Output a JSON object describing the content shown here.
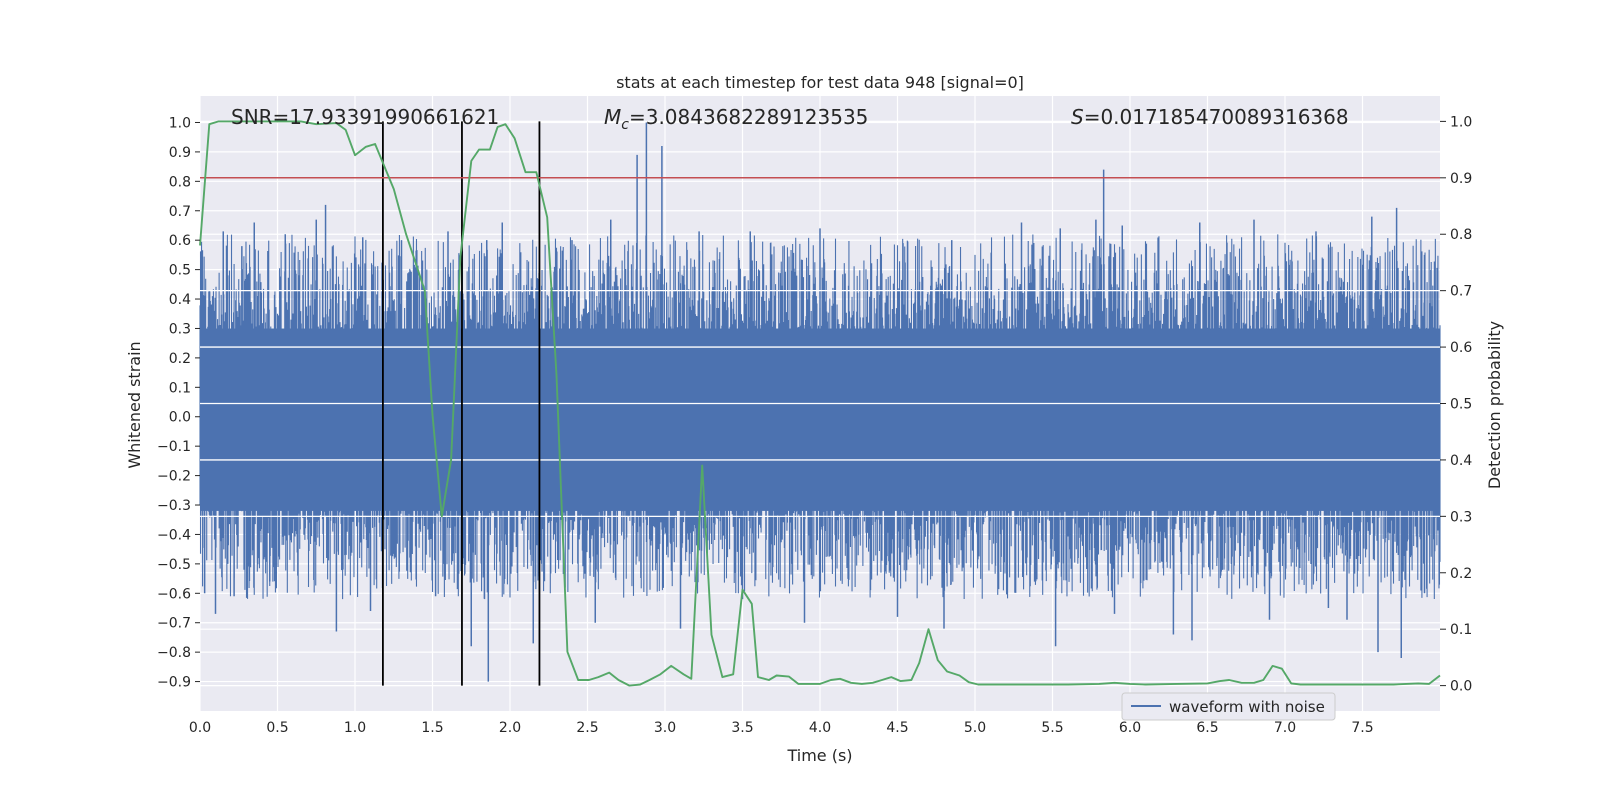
{
  "chart_data": {
    "type": "line",
    "title": "stats at each timestep for test data 948 [signal=0]",
    "xlabel": "Time (s)",
    "ylabel": "Whitened strain",
    "y2label": "Detection probability",
    "xlim": [
      0.0,
      8.0
    ],
    "ylim": [
      -1.0,
      1.09
    ],
    "y2lim": [
      -0.045,
      1.045
    ],
    "xticks": [
      "0.0",
      "0.5",
      "1.0",
      "1.5",
      "2.0",
      "2.5",
      "3.0",
      "3.5",
      "4.0",
      "4.5",
      "5.0",
      "5.5",
      "6.0",
      "6.5",
      "7.0",
      "7.5"
    ],
    "yticks": [
      "1.0",
      "0.9",
      "0.8",
      "0.7",
      "0.6",
      "0.5",
      "0.4",
      "0.3",
      "0.2",
      "0.1",
      "0.0",
      "−0.1",
      "−0.2",
      "−0.3",
      "−0.4",
      "−0.5",
      "−0.6",
      "−0.7",
      "−0.8",
      "−0.9"
    ],
    "y2ticks": [
      "1.0",
      "0.9",
      "0.8",
      "0.7",
      "0.6",
      "0.5",
      "0.4",
      "0.3",
      "0.2",
      "0.1",
      "0.0"
    ],
    "annotations": {
      "snr": "SNR=17.93391990661621",
      "mc_symbol": "M",
      "mc_sub": "c",
      "mc_value": "=3.0843682289123535",
      "s_symbol": "S",
      "s_value": "=0.01718547008931636​8"
    },
    "legend": {
      "label": "waveform with noise",
      "placement": "lower-right"
    },
    "vlines": [
      1.18,
      1.69,
      2.19
    ],
    "threshold": 0.9,
    "colors": {
      "waveform": "#4c72b0",
      "probability": "#55a868",
      "threshold": "#c44e52",
      "vline": "#000000",
      "plot_bg": "#eaeaf2",
      "grid": "#ffffff"
    },
    "series": [
      {
        "name": "waveform with noise",
        "note_envelope": "noise spikes within roughly -0.9 to 1.0",
        "spikes_up": [
          [
            0.06,
            0.43
          ],
          [
            0.15,
            0.63
          ],
          [
            0.27,
            0.58
          ],
          [
            0.35,
            0.66
          ],
          [
            0.55,
            0.62
          ],
          [
            0.75,
            0.67
          ],
          [
            0.81,
            0.72
          ],
          [
            1.05,
            0.61
          ],
          [
            1.3,
            0.6
          ],
          [
            1.6,
            0.63
          ],
          [
            1.85,
            0.6
          ],
          [
            1.95,
            0.66
          ],
          [
            2.4,
            0.6
          ],
          [
            2.65,
            0.67
          ],
          [
            2.82,
            0.89
          ],
          [
            2.88,
            1.0
          ],
          [
            2.98,
            0.92
          ],
          [
            3.22,
            0.63
          ],
          [
            3.55,
            0.63
          ],
          [
            4.0,
            0.64
          ],
          [
            4.85,
            0.6
          ],
          [
            5.3,
            0.66
          ],
          [
            5.55,
            0.64
          ],
          [
            5.78,
            0.67
          ],
          [
            5.83,
            0.84
          ],
          [
            5.95,
            0.65
          ],
          [
            6.45,
            0.66
          ],
          [
            6.8,
            0.67
          ],
          [
            7.2,
            0.63
          ],
          [
            7.56,
            0.68
          ],
          [
            7.72,
            0.71
          ],
          [
            7.9,
            0.55
          ]
        ],
        "spikes_down": [
          [
            0.03,
            -0.6
          ],
          [
            0.1,
            -0.67
          ],
          [
            0.22,
            -0.61
          ],
          [
            0.45,
            -0.56
          ],
          [
            0.88,
            -0.73
          ],
          [
            1.1,
            -0.66
          ],
          [
            1.52,
            -0.61
          ],
          [
            1.75,
            -0.78
          ],
          [
            1.86,
            -0.9
          ],
          [
            2.15,
            -0.77
          ],
          [
            2.55,
            -0.7
          ],
          [
            3.1,
            -0.72
          ],
          [
            3.5,
            -0.62
          ],
          [
            3.9,
            -0.7
          ],
          [
            4.5,
            -0.68
          ],
          [
            4.8,
            -0.72
          ],
          [
            5.52,
            -0.78
          ],
          [
            5.9,
            -0.67
          ],
          [
            6.28,
            -0.74
          ],
          [
            6.4,
            -0.76
          ],
          [
            6.9,
            -0.69
          ],
          [
            7.28,
            -0.65
          ],
          [
            7.4,
            -0.69
          ],
          [
            7.6,
            -0.8
          ],
          [
            7.75,
            -0.82
          ],
          [
            7.9,
            -0.6
          ]
        ]
      },
      {
        "name": "",
        "axis": "right",
        "points": [
          [
            0.0,
            0.78
          ],
          [
            0.06,
            0.995
          ],
          [
            0.12,
            1.0
          ],
          [
            0.3,
            1.0
          ],
          [
            0.5,
            1.0
          ],
          [
            0.65,
            1.0
          ],
          [
            0.75,
            0.995
          ],
          [
            0.88,
            0.997
          ],
          [
            0.94,
            0.985
          ],
          [
            1.0,
            0.94
          ],
          [
            1.07,
            0.955
          ],
          [
            1.13,
            0.96
          ],
          [
            1.19,
            0.92
          ],
          [
            1.25,
            0.88
          ],
          [
            1.33,
            0.8
          ],
          [
            1.45,
            0.7
          ],
          [
            1.5,
            0.48
          ],
          [
            1.56,
            0.3
          ],
          [
            1.62,
            0.4
          ],
          [
            1.68,
            0.76
          ],
          [
            1.75,
            0.93
          ],
          [
            1.8,
            0.95
          ],
          [
            1.87,
            0.95
          ],
          [
            1.92,
            0.99
          ],
          [
            1.97,
            0.995
          ],
          [
            2.03,
            0.97
          ],
          [
            2.1,
            0.91
          ],
          [
            2.17,
            0.91
          ],
          [
            2.24,
            0.83
          ],
          [
            2.3,
            0.55
          ],
          [
            2.37,
            0.06
          ],
          [
            2.44,
            0.01
          ],
          [
            2.51,
            0.01
          ],
          [
            2.57,
            0.015
          ],
          [
            2.64,
            0.023
          ],
          [
            2.7,
            0.01
          ],
          [
            2.77,
            0.0
          ],
          [
            2.84,
            0.002
          ],
          [
            2.9,
            0.01
          ],
          [
            2.97,
            0.02
          ],
          [
            3.04,
            0.035
          ],
          [
            3.12,
            0.02
          ],
          [
            3.17,
            0.012
          ],
          [
            3.24,
            0.39
          ],
          [
            3.3,
            0.09
          ],
          [
            3.37,
            0.015
          ],
          [
            3.44,
            0.02
          ],
          [
            3.5,
            0.17
          ],
          [
            3.56,
            0.145
          ],
          [
            3.6,
            0.015
          ],
          [
            3.67,
            0.01
          ],
          [
            3.72,
            0.018
          ],
          [
            3.8,
            0.016
          ],
          [
            3.86,
            0.003
          ],
          [
            3.94,
            0.003
          ],
          [
            4.0,
            0.003
          ],
          [
            4.07,
            0.01
          ],
          [
            4.13,
            0.012
          ],
          [
            4.2,
            0.005
          ],
          [
            4.27,
            0.003
          ],
          [
            4.34,
            0.005
          ],
          [
            4.4,
            0.01
          ],
          [
            4.46,
            0.015
          ],
          [
            4.52,
            0.008
          ],
          [
            4.59,
            0.01
          ],
          [
            4.64,
            0.04
          ],
          [
            4.7,
            0.1
          ],
          [
            4.76,
            0.045
          ],
          [
            4.82,
            0.025
          ],
          [
            4.9,
            0.018
          ],
          [
            4.96,
            0.006
          ],
          [
            5.02,
            0.002
          ],
          [
            5.1,
            0.002
          ],
          [
            5.2,
            0.002
          ],
          [
            5.4,
            0.002
          ],
          [
            5.6,
            0.002
          ],
          [
            5.8,
            0.003
          ],
          [
            5.9,
            0.005
          ],
          [
            6.0,
            0.003
          ],
          [
            6.1,
            0.002
          ],
          [
            6.3,
            0.003
          ],
          [
            6.5,
            0.004
          ],
          [
            6.58,
            0.008
          ],
          [
            6.64,
            0.01
          ],
          [
            6.72,
            0.005
          ],
          [
            6.8,
            0.005
          ],
          [
            6.86,
            0.01
          ],
          [
            6.92,
            0.035
          ],
          [
            6.98,
            0.03
          ],
          [
            7.04,
            0.004
          ],
          [
            7.1,
            0.002
          ],
          [
            7.3,
            0.002
          ],
          [
            7.5,
            0.002
          ],
          [
            7.7,
            0.002
          ],
          [
            7.86,
            0.004
          ],
          [
            7.93,
            0.003
          ],
          [
            8.0,
            0.018
          ]
        ]
      }
    ]
  }
}
